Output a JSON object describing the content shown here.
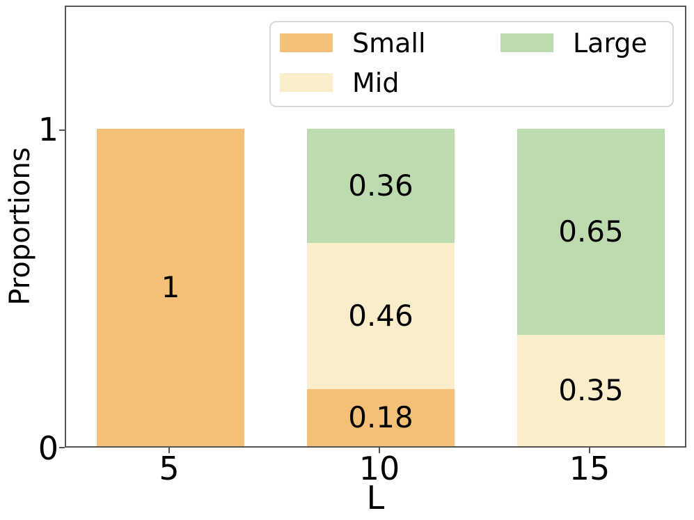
{
  "chart_data": {
    "type": "bar",
    "stacked": true,
    "title": "",
    "xlabel": "L",
    "ylabel": "Proportions",
    "categories": [
      "5",
      "10",
      "15"
    ],
    "yticklabels": [
      "0",
      "1"
    ],
    "ylim": [
      0,
      1.39
    ],
    "grid": false,
    "legend_position": "upper center inside plot, 2 columns",
    "series": [
      {
        "name": "Small",
        "color": "#f4bf77",
        "values": [
          1,
          0.18,
          0
        ],
        "labels": [
          "1",
          "0.18",
          ""
        ]
      },
      {
        "name": "Mid",
        "color": "#faedca",
        "values": [
          0,
          0.46,
          0.35
        ],
        "labels": [
          "",
          "0.46",
          "0.35"
        ]
      },
      {
        "name": "Large",
        "color": "#bedbb0",
        "values": [
          0,
          0.36,
          0.65
        ],
        "labels": [
          "",
          "0.36",
          "0.65"
        ]
      }
    ]
  },
  "axes": {
    "spine_color": "#555555"
  }
}
